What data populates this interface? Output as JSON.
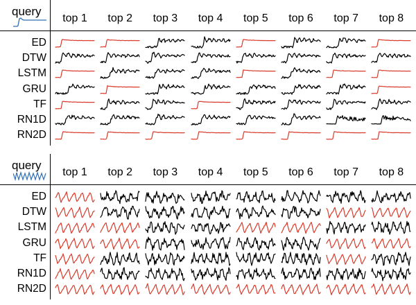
{
  "colors": {
    "match": "#d93a2b",
    "nonmatch": "#000000",
    "query": "#2f6fb5",
    "divider": "#000000"
  },
  "panels": [
    {
      "id": "step",
      "query_label": "query",
      "query_icon": "step-pulse",
      "columns": [
        "top 1",
        "top 2",
        "top 3",
        "top 4",
        "top 5",
        "top 6",
        "top 7",
        "top 8"
      ],
      "rows": [
        {
          "method": "ED",
          "match": [
            true,
            true,
            false,
            false,
            true,
            false,
            false,
            true
          ]
        },
        {
          "method": "DTW",
          "match": [
            false,
            false,
            false,
            false,
            false,
            false,
            false,
            false
          ]
        },
        {
          "method": "LSTM",
          "match": [
            true,
            false,
            false,
            false,
            true,
            false,
            true,
            true
          ]
        },
        {
          "method": "GRU",
          "match": [
            false,
            true,
            false,
            false,
            false,
            false,
            false,
            true
          ]
        },
        {
          "method": "TF",
          "match": [
            true,
            false,
            false,
            true,
            false,
            false,
            false,
            false
          ]
        },
        {
          "method": "RN1D",
          "match": [
            false,
            false,
            false,
            false,
            false,
            false,
            false,
            false
          ]
        },
        {
          "method": "RN2D",
          "match": [
            true,
            true,
            true,
            true,
            true,
            true,
            true,
            true
          ]
        }
      ]
    },
    {
      "id": "periodic",
      "query_label": "query",
      "query_icon": "periodic-sawtooth",
      "columns": [
        "top 1",
        "top 2",
        "top 3",
        "top 4",
        "top 5",
        "top 6",
        "top 7",
        "top 8"
      ],
      "rows": [
        {
          "method": "ED",
          "match": [
            true,
            false,
            false,
            false,
            false,
            false,
            false,
            false
          ]
        },
        {
          "method": "DTW",
          "match": [
            true,
            false,
            false,
            false,
            false,
            false,
            true,
            true
          ]
        },
        {
          "method": "LSTM",
          "match": [
            true,
            true,
            false,
            false,
            true,
            true,
            false,
            false
          ]
        },
        {
          "method": "GRU",
          "match": [
            true,
            true,
            false,
            false,
            false,
            false,
            true,
            true
          ]
        },
        {
          "method": "TF",
          "match": [
            true,
            false,
            false,
            false,
            false,
            false,
            true,
            false
          ]
        },
        {
          "method": "RN1D",
          "match": [
            true,
            false,
            false,
            false,
            false,
            false,
            false,
            false
          ]
        },
        {
          "method": "RN2D",
          "match": [
            true,
            true,
            true,
            true,
            true,
            true,
            true,
            true
          ]
        }
      ]
    }
  ]
}
